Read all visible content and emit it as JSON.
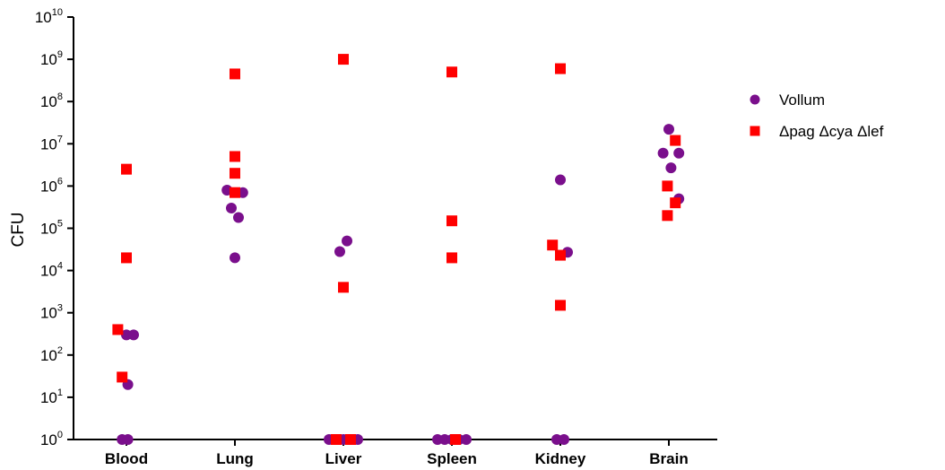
{
  "chart_data": {
    "type": "scatter",
    "ylabel": "CFU",
    "yscale": "log",
    "ylim": [
      1,
      10000000000
    ],
    "y_ticks": [
      {
        "base": "10",
        "exp": "0"
      },
      {
        "base": "10",
        "exp": "1"
      },
      {
        "base": "10",
        "exp": "2"
      },
      {
        "base": "10",
        "exp": "3"
      },
      {
        "base": "10",
        "exp": "4"
      },
      {
        "base": "10",
        "exp": "5"
      },
      {
        "base": "10",
        "exp": "6"
      },
      {
        "base": "10",
        "exp": "7"
      },
      {
        "base": "10",
        "exp": "8"
      },
      {
        "base": "10",
        "exp": "9"
      },
      {
        "base": "10",
        "exp": "10"
      }
    ],
    "categories": [
      "Blood",
      "Lung",
      "Liver",
      "Spleen",
      "Kidney",
      "Brain"
    ],
    "legend_position": "right",
    "series": [
      {
        "name": "Vollum",
        "marker": "circle",
        "color": "#7a0f8c",
        "points": [
          {
            "category": "Blood",
            "offset": -0.3,
            "y": 1
          },
          {
            "category": "Blood",
            "offset": 0.1,
            "y": 1
          },
          {
            "category": "Blood",
            "offset": 0.0,
            "y": 300
          },
          {
            "category": "Blood",
            "offset": 0.5,
            "y": 300
          },
          {
            "category": "Blood",
            "offset": 0.1,
            "y": 20
          },
          {
            "category": "Lung",
            "offset": -0.55,
            "y": 800000
          },
          {
            "category": "Lung",
            "offset": 0.55,
            "y": 700000
          },
          {
            "category": "Lung",
            "offset": -0.25,
            "y": 300000
          },
          {
            "category": "Lung",
            "offset": 0.25,
            "y": 180000
          },
          {
            "category": "Lung",
            "offset": 0.0,
            "y": 20000
          },
          {
            "category": "Liver",
            "offset": -0.25,
            "y": 28000
          },
          {
            "category": "Liver",
            "offset": 0.25,
            "y": 50000
          },
          {
            "category": "Liver",
            "offset": -1.0,
            "y": 1
          },
          {
            "category": "Liver",
            "offset": 0.0,
            "y": 1
          },
          {
            "category": "Liver",
            "offset": 1.0,
            "y": 1
          },
          {
            "category": "Spleen",
            "offset": -1.0,
            "y": 1
          },
          {
            "category": "Spleen",
            "offset": -0.5,
            "y": 1
          },
          {
            "category": "Spleen",
            "offset": 0.0,
            "y": 1
          },
          {
            "category": "Spleen",
            "offset": 0.5,
            "y": 1
          },
          {
            "category": "Spleen",
            "offset": 1.0,
            "y": 1
          },
          {
            "category": "Kidney",
            "offset": 0.0,
            "y": 1400000
          },
          {
            "category": "Kidney",
            "offset": 0.5,
            "y": 27000
          },
          {
            "category": "Kidney",
            "offset": -0.25,
            "y": 1
          },
          {
            "category": "Kidney",
            "offset": 0.25,
            "y": 1
          },
          {
            "category": "Brain",
            "offset": 0.0,
            "y": 22000000
          },
          {
            "category": "Brain",
            "offset": -0.4,
            "y": 6000000
          },
          {
            "category": "Brain",
            "offset": 0.7,
            "y": 6000000
          },
          {
            "category": "Brain",
            "offset": 0.15,
            "y": 2700000
          },
          {
            "category": "Brain",
            "offset": 0.7,
            "y": 500000
          }
        ]
      },
      {
        "name": "Δpag Δcya Δlef",
        "marker": "square",
        "color": "#ff0000",
        "points": [
          {
            "category": "Blood",
            "offset": 0.0,
            "y": 2500000
          },
          {
            "category": "Blood",
            "offset": 0.0,
            "y": 20000
          },
          {
            "category": "Blood",
            "offset": -0.6,
            "y": 400
          },
          {
            "category": "Blood",
            "offset": -0.3,
            "y": 30
          },
          {
            "category": "Lung",
            "offset": 0.0,
            "y": 450000000
          },
          {
            "category": "Lung",
            "offset": 0.0,
            "y": 5000000
          },
          {
            "category": "Lung",
            "offset": 0.0,
            "y": 2000000
          },
          {
            "category": "Lung",
            "offset": 0.0,
            "y": 700000
          },
          {
            "category": "Liver",
            "offset": 0.0,
            "y": 1000000000
          },
          {
            "category": "Liver",
            "offset": 0.0,
            "y": 4000
          },
          {
            "category": "Liver",
            "offset": -0.5,
            "y": 1
          },
          {
            "category": "Liver",
            "offset": 0.5,
            "y": 1
          },
          {
            "category": "Spleen",
            "offset": 0.0,
            "y": 500000000
          },
          {
            "category": "Spleen",
            "offset": 0.0,
            "y": 150000
          },
          {
            "category": "Spleen",
            "offset": 0.0,
            "y": 20000
          },
          {
            "category": "Spleen",
            "offset": 0.25,
            "y": 1
          },
          {
            "category": "Kidney",
            "offset": 0.0,
            "y": 600000000
          },
          {
            "category": "Kidney",
            "offset": -0.55,
            "y": 40000
          },
          {
            "category": "Kidney",
            "offset": 0.0,
            "y": 23000
          },
          {
            "category": "Kidney",
            "offset": 0.0,
            "y": 1500
          },
          {
            "category": "Brain",
            "offset": 0.45,
            "y": 12000000
          },
          {
            "category": "Brain",
            "offset": -0.1,
            "y": 1000000
          },
          {
            "category": "Brain",
            "offset": 0.45,
            "y": 400000
          },
          {
            "category": "Brain",
            "offset": -0.1,
            "y": 200000
          }
        ]
      }
    ]
  }
}
